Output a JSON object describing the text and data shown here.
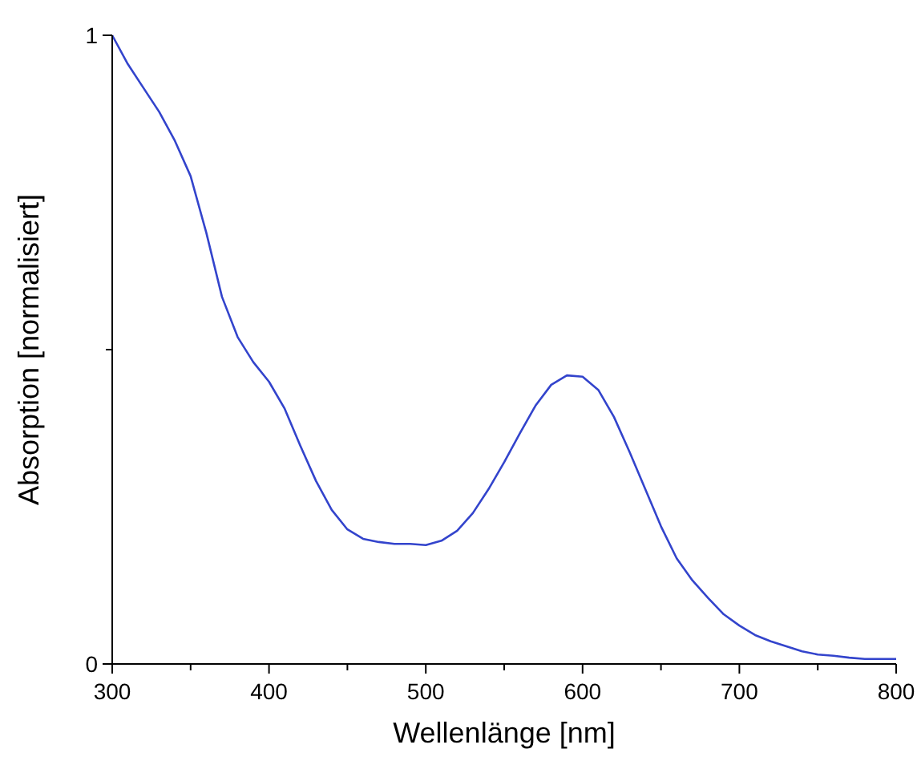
{
  "chart_data": {
    "type": "line",
    "xlabel": "Wellenlänge [nm]",
    "ylabel": "Absorption [normalisiert]",
    "xlim": [
      300,
      800
    ],
    "ylim": [
      0,
      1
    ],
    "xticks": [
      300,
      {
        "value": 350,
        "label": null
      },
      400,
      {
        "value": 450,
        "label": null
      },
      500,
      {
        "value": 550,
        "label": null
      },
      600,
      {
        "value": 650,
        "label": null
      },
      700,
      {
        "value": 750,
        "label": null
      },
      800
    ],
    "yticks": [
      0,
      {
        "value": 0.5,
        "label": null
      },
      1
    ],
    "grid": false,
    "marker": "none",
    "line_style": "solid",
    "series": [
      {
        "color": "#3344cc",
        "x": [
          300,
          310,
          320,
          330,
          340,
          350,
          360,
          370,
          380,
          390,
          400,
          410,
          420,
          430,
          440,
          450,
          460,
          470,
          480,
          490,
          500,
          510,
          520,
          530,
          540,
          550,
          560,
          570,
          580,
          590,
          600,
          610,
          620,
          630,
          640,
          650,
          660,
          670,
          680,
          690,
          700,
          710,
          720,
          730,
          740,
          750,
          760,
          770,
          780,
          790,
          800
        ],
        "values": [
          1.0,
          0.954,
          0.916,
          0.878,
          0.832,
          0.776,
          0.686,
          0.584,
          0.52,
          0.48,
          0.449,
          0.406,
          0.347,
          0.291,
          0.245,
          0.214,
          0.199,
          0.194,
          0.191,
          0.191,
          0.189,
          0.196,
          0.212,
          0.24,
          0.278,
          0.321,
          0.367,
          0.411,
          0.444,
          0.459,
          0.457,
          0.436,
          0.393,
          0.337,
          0.278,
          0.219,
          0.168,
          0.133,
          0.105,
          0.079,
          0.061,
          0.046,
          0.036,
          0.028,
          0.02,
          0.015,
          0.013,
          0.01,
          0.008,
          0.008,
          0.008
        ]
      }
    ]
  }
}
